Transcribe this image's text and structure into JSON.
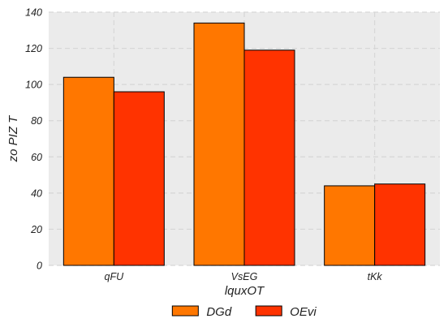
{
  "chart_data": {
    "type": "bar",
    "title": "",
    "xlabel": "lquxOT",
    "ylabel": "zo PIZ  T",
    "categories": [
      "qFU",
      "VsEG",
      "tKk"
    ],
    "series": [
      {
        "name": "DGd",
        "values": [
          104,
          134,
          44
        ],
        "color": "#ff7700"
      },
      {
        "name": "OEvi",
        "values": [
          96,
          119,
          45
        ],
        "color": "#ff3300"
      }
    ],
    "ylim": [
      0,
      140
    ],
    "yticks": [
      "0",
      "20",
      "40",
      "60",
      "80",
      "100",
      "120",
      "140"
    ],
    "grid": true,
    "background": "#ebebeb",
    "legend_position": "bottom-center"
  }
}
